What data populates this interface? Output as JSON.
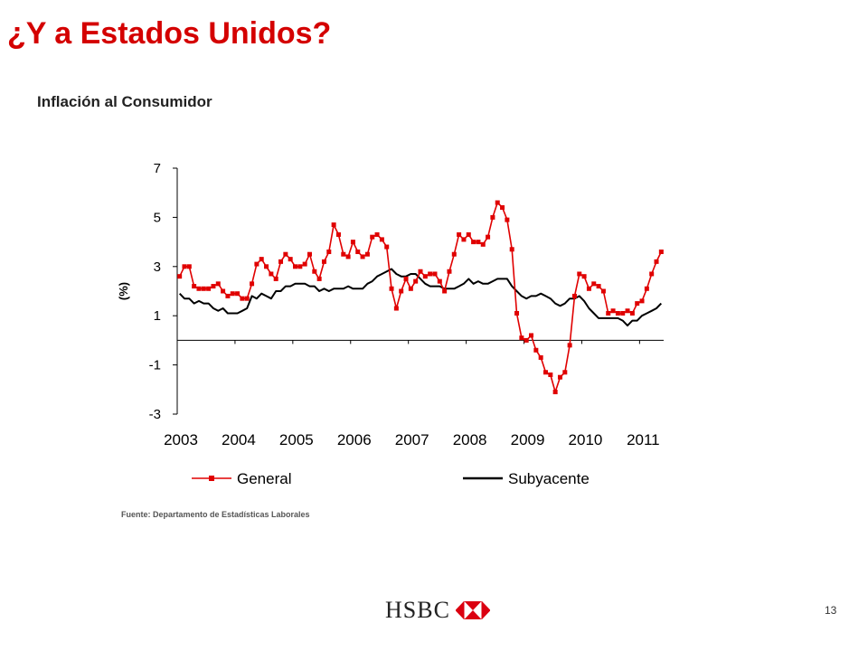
{
  "slide": {
    "title": "¿Y a Estados Unidos?",
    "page_number": "13",
    "logo_text": "HSBC",
    "source": "Fuente: Departamento de Estadísticas Laborales"
  },
  "colors": {
    "title": "#d40000",
    "general": "#e00000",
    "subyacente": "#000000",
    "logo_red": "#db0011"
  },
  "chart_data": {
    "type": "line",
    "title": "Inflación al Consumidor",
    "ylabel": "(%)",
    "xlabel": "",
    "ylim": [
      -3,
      7
    ],
    "yticks": [
      7,
      5,
      3,
      1,
      -1,
      -3
    ],
    "xticks": [
      "2003",
      "2004",
      "2005",
      "2006",
      "2007",
      "2008",
      "2009",
      "2010",
      "2011"
    ],
    "x_start": "2003-01",
    "x_end": "2011-05",
    "legend_position": "bottom",
    "grid": false,
    "series": [
      {
        "name": "General",
        "marker": "square",
        "values": [
          2.6,
          3.0,
          3.0,
          2.2,
          2.1,
          2.1,
          2.1,
          2.2,
          2.3,
          2.0,
          1.8,
          1.9,
          1.9,
          1.7,
          1.7,
          2.3,
          3.1,
          3.3,
          3.0,
          2.7,
          2.5,
          3.2,
          3.5,
          3.3,
          3.0,
          3.0,
          3.1,
          3.5,
          2.8,
          2.5,
          3.2,
          3.6,
          4.7,
          4.3,
          3.5,
          3.4,
          4.0,
          3.6,
          3.4,
          3.5,
          4.2,
          4.3,
          4.1,
          3.8,
          2.1,
          1.3,
          2.0,
          2.5,
          2.1,
          2.4,
          2.8,
          2.6,
          2.7,
          2.7,
          2.4,
          2.0,
          2.8,
          3.5,
          4.3,
          4.1,
          4.3,
          4.0,
          4.0,
          3.9,
          4.2,
          5.0,
          5.6,
          5.4,
          4.9,
          3.7,
          1.1,
          0.1,
          0.0,
          0.2,
          -0.4,
          -0.7,
          -1.3,
          -1.4,
          -2.1,
          -1.5,
          -1.3,
          -0.2,
          1.8,
          2.7,
          2.6,
          2.1,
          2.3,
          2.2,
          2.0,
          1.1,
          1.2,
          1.1,
          1.1,
          1.2,
          1.1,
          1.5,
          1.6,
          2.1,
          2.7,
          3.2,
          3.6
        ]
      },
      {
        "name": "Subyacente",
        "marker": "none",
        "values": [
          1.9,
          1.7,
          1.7,
          1.5,
          1.6,
          1.5,
          1.5,
          1.3,
          1.2,
          1.3,
          1.1,
          1.1,
          1.1,
          1.2,
          1.3,
          1.8,
          1.7,
          1.9,
          1.8,
          1.7,
          2.0,
          2.0,
          2.2,
          2.2,
          2.3,
          2.3,
          2.3,
          2.2,
          2.2,
          2.0,
          2.1,
          2.0,
          2.1,
          2.1,
          2.1,
          2.2,
          2.1,
          2.1,
          2.1,
          2.3,
          2.4,
          2.6,
          2.7,
          2.8,
          2.9,
          2.7,
          2.6,
          2.6,
          2.7,
          2.7,
          2.5,
          2.3,
          2.2,
          2.2,
          2.2,
          2.1,
          2.1,
          2.1,
          2.2,
          2.3,
          2.5,
          2.3,
          2.4,
          2.3,
          2.3,
          2.4,
          2.5,
          2.5,
          2.5,
          2.2,
          2.0,
          1.8,
          1.7,
          1.8,
          1.8,
          1.9,
          1.8,
          1.7,
          1.5,
          1.4,
          1.5,
          1.7,
          1.7,
          1.8,
          1.6,
          1.3,
          1.1,
          0.9,
          0.9,
          0.9,
          0.9,
          0.9,
          0.8,
          0.6,
          0.8,
          0.8,
          1.0,
          1.1,
          1.2,
          1.3,
          1.5
        ]
      }
    ]
  }
}
